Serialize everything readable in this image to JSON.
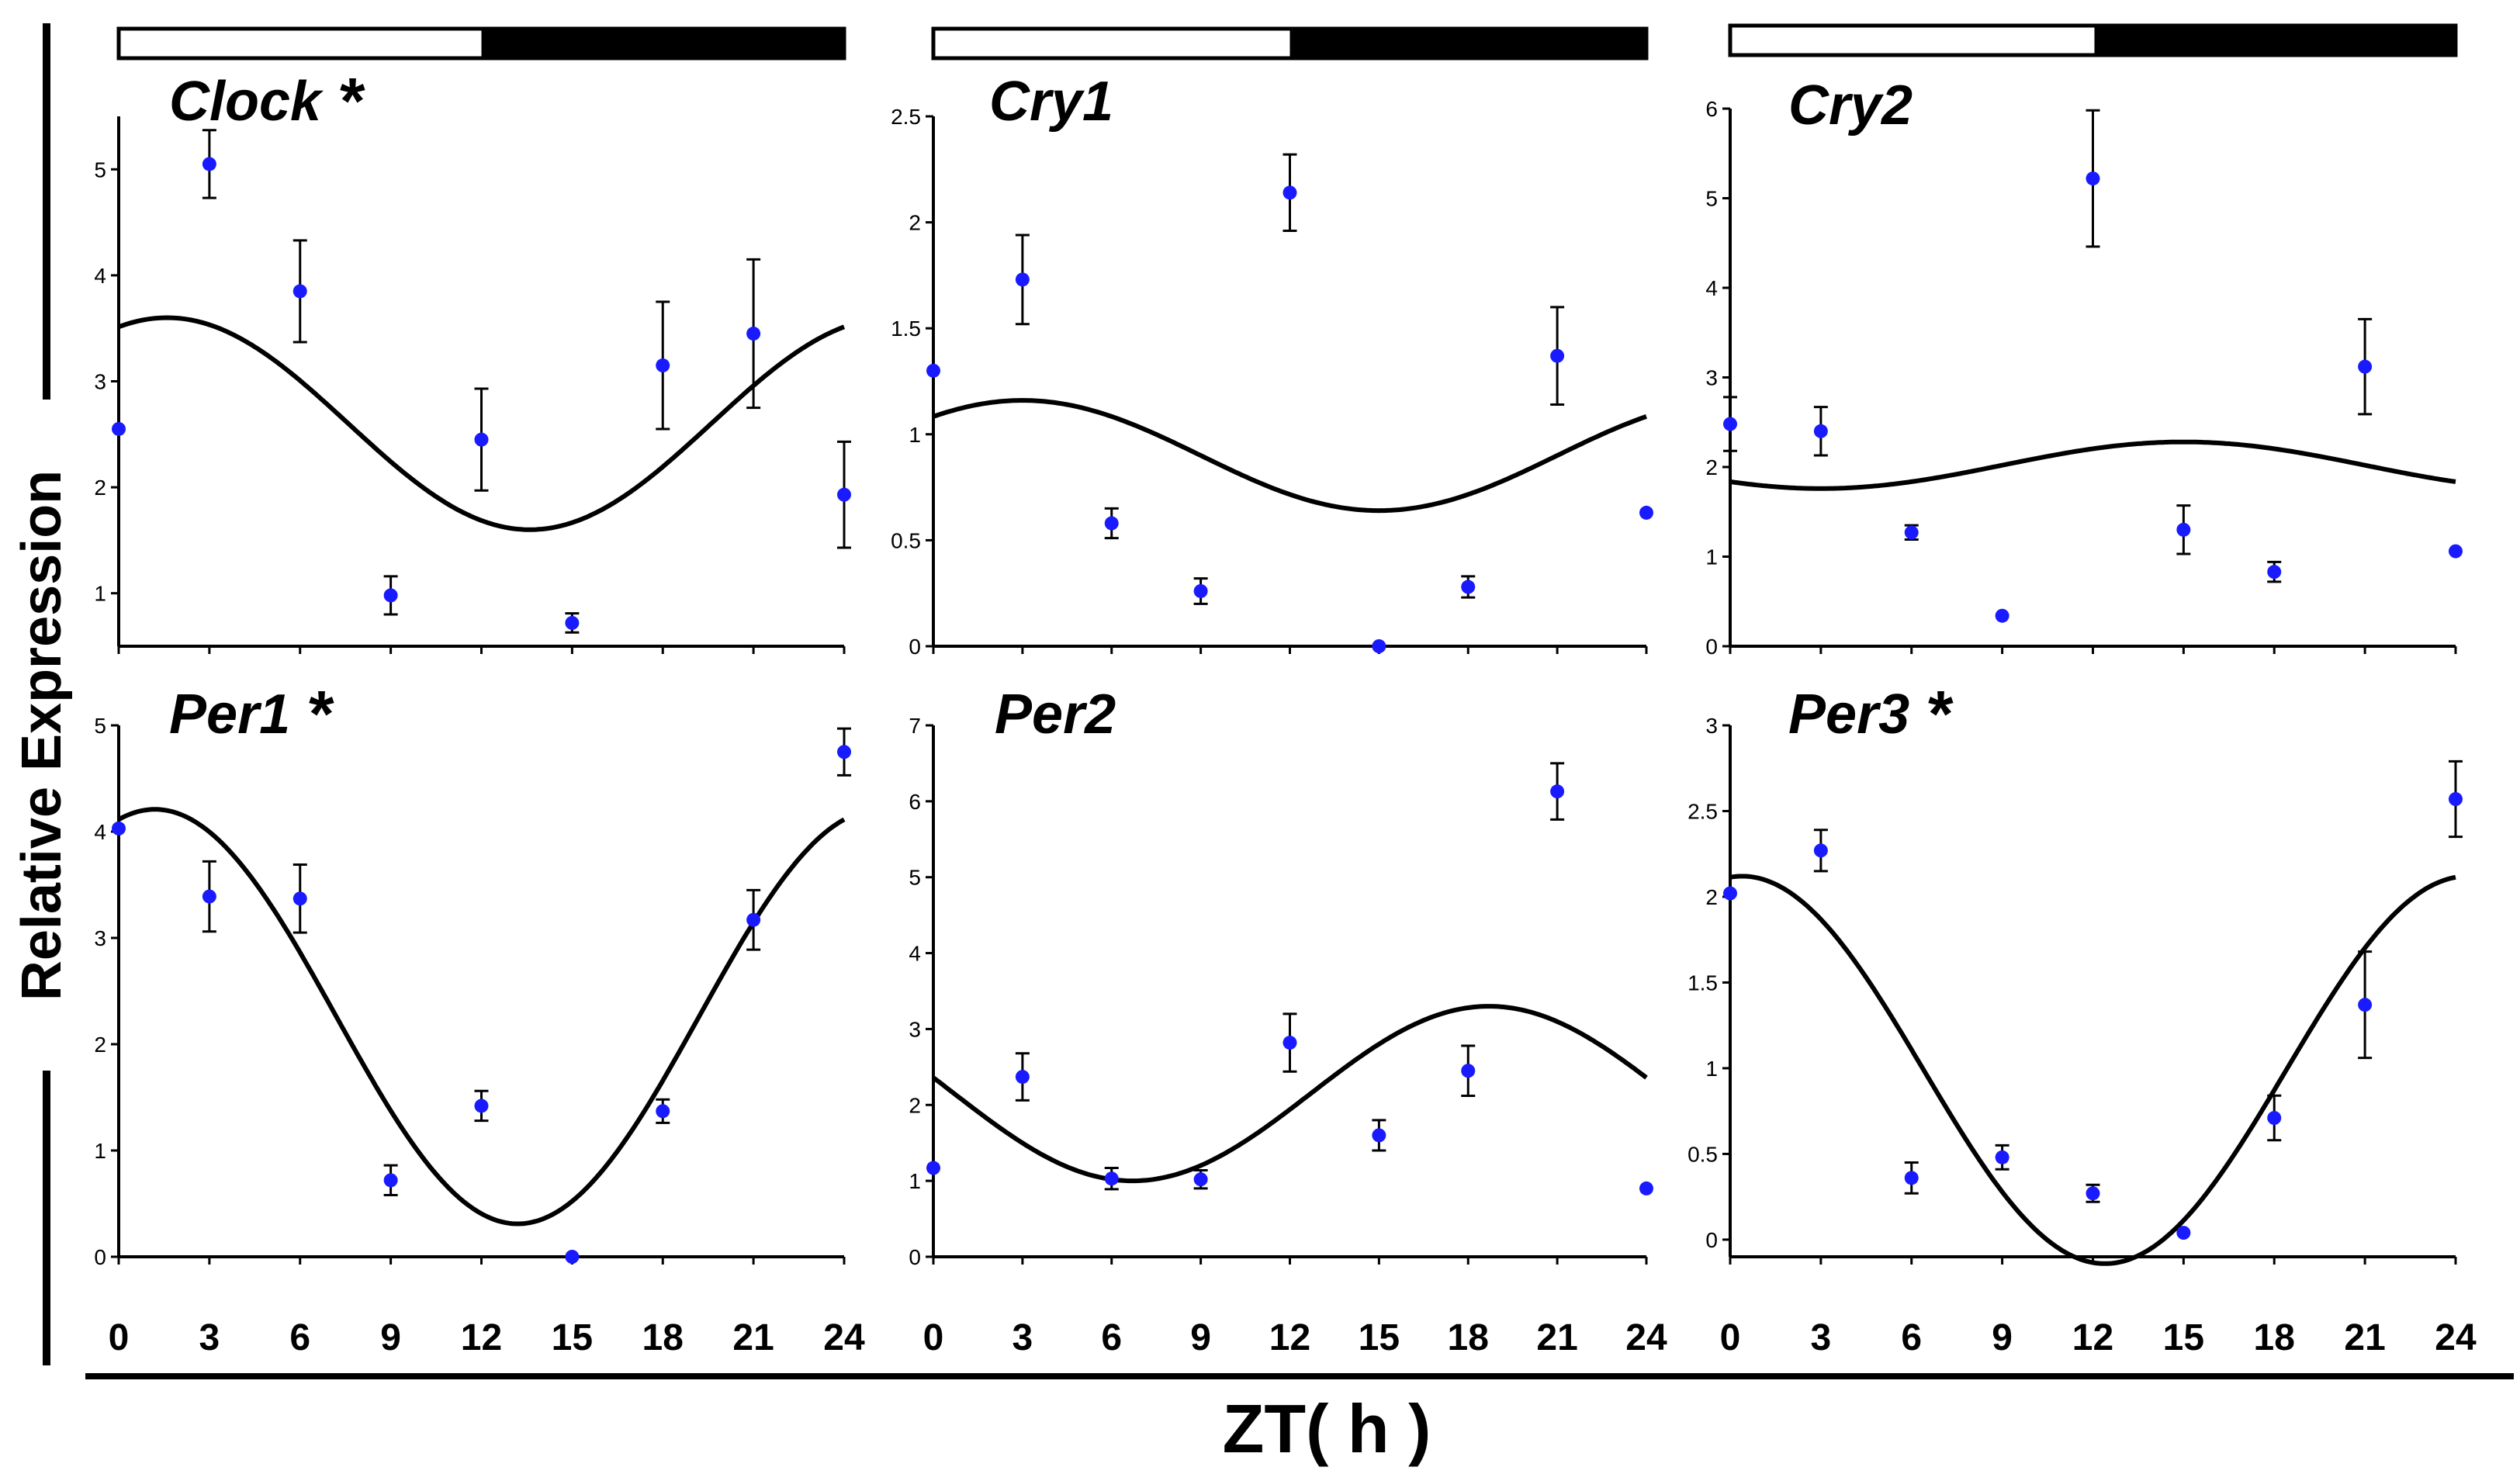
{
  "figure": {
    "ylabel": "Relative Expression",
    "xlabel": "ZT( h )",
    "x_ticks": [
      "0",
      "3",
      "6",
      "9",
      "12",
      "15",
      "18",
      "21",
      "24"
    ],
    "light_dark_bar": {
      "light_phase": [
        0,
        12
      ],
      "dark_phase": [
        12,
        24
      ],
      "light_color": "#ffffff",
      "dark_color": "#000000"
    },
    "point_color": "#1a1aff",
    "curve_color": "#000000"
  },
  "chart_data": [
    {
      "type": "scatter",
      "title": "Clock",
      "significant": true,
      "star": "*",
      "xlim": [
        0,
        24
      ],
      "ylim": [
        0.5,
        5.5
      ],
      "yticks": [
        1,
        2,
        3,
        4,
        5
      ],
      "ytick_labels": [
        "1",
        "2",
        "3",
        "4",
        "5"
      ],
      "x": [
        0,
        3,
        6,
        9,
        12,
        15,
        18,
        21,
        24
      ],
      "y": [
        2.55,
        5.05,
        3.85,
        0.98,
        2.45,
        0.72,
        3.15,
        3.45,
        1.93
      ],
      "err": [
        0.0,
        0.32,
        0.48,
        0.18,
        0.48,
        0.09,
        0.6,
        0.7,
        0.5
      ],
      "fit": {
        "mesor": 2.6,
        "amplitude": 1.0,
        "peak_zt": 1.6
      }
    },
    {
      "type": "scatter",
      "title": "Cry1",
      "significant": false,
      "star": "",
      "xlim": [
        0,
        24
      ],
      "ylim": [
        0,
        2.5
      ],
      "yticks": [
        0,
        0.5,
        1,
        1.5,
        2,
        2.5
      ],
      "ytick_labels": [
        "0",
        "0.5",
        "1",
        "1.5",
        "2",
        "2.5"
      ],
      "x": [
        0,
        3,
        6,
        9,
        12,
        15,
        18,
        21,
        24
      ],
      "y": [
        1.3,
        1.73,
        0.58,
        0.26,
        2.14,
        0.0,
        0.28,
        1.37,
        0.63
      ],
      "err": [
        0.0,
        0.21,
        0.07,
        0.06,
        0.18,
        0.0,
        0.05,
        0.23,
        0.0
      ],
      "fit": {
        "mesor": 0.9,
        "amplitude": 0.26,
        "peak_zt": 3.0
      }
    },
    {
      "type": "scatter",
      "title": "Cry2",
      "significant": false,
      "star": "",
      "xlim": [
        0,
        24
      ],
      "ylim": [
        0,
        6
      ],
      "yticks": [
        0,
        1,
        2,
        3,
        4,
        5,
        6
      ],
      "ytick_labels": [
        "0",
        "1",
        "2",
        "3",
        "4",
        "5",
        "6"
      ],
      "x": [
        0,
        3,
        6,
        9,
        12,
        15,
        18,
        21,
        24
      ],
      "y": [
        2.48,
        2.4,
        1.27,
        0.34,
        5.22,
        1.3,
        0.83,
        3.12,
        1.06
      ],
      "err": [
        0.3,
        0.27,
        0.08,
        0.0,
        0.76,
        0.27,
        0.11,
        0.53,
        0.0
      ],
      "fit": {
        "mesor": 2.02,
        "amplitude": 0.26,
        "peak_zt": 15.0
      }
    },
    {
      "type": "scatter",
      "title": "Per1",
      "significant": true,
      "star": "*",
      "xlim": [
        0,
        24
      ],
      "ylim": [
        0,
        5
      ],
      "yticks": [
        0,
        1,
        2,
        3,
        4,
        5
      ],
      "ytick_labels": [
        "0",
        "1",
        "2",
        "3",
        "4",
        "5"
      ],
      "x": [
        0,
        3,
        6,
        9,
        12,
        15,
        18,
        21,
        24
      ],
      "y": [
        4.03,
        3.39,
        3.37,
        0.72,
        1.42,
        0.0,
        1.37,
        3.17,
        4.75
      ],
      "err": [
        0.0,
        0.33,
        0.32,
        0.14,
        0.14,
        0.0,
        0.11,
        0.28,
        0.22
      ],
      "fit": {
        "mesor": 2.26,
        "amplitude": 1.95,
        "peak_zt": 1.2
      }
    },
    {
      "type": "scatter",
      "title": "Per2",
      "significant": false,
      "star": "",
      "xlim": [
        0,
        24
      ],
      "ylim": [
        0,
        7
      ],
      "yticks": [
        0,
        1,
        2,
        3,
        4,
        5,
        6,
        7
      ],
      "ytick_labels": [
        "0",
        "1",
        "2",
        "3",
        "4",
        "5",
        "6",
        "7"
      ],
      "x": [
        0,
        3,
        6,
        9,
        12,
        15,
        18,
        21,
        24
      ],
      "y": [
        1.17,
        2.37,
        1.03,
        1.02,
        2.82,
        1.6,
        2.45,
        6.13,
        0.9
      ],
      "err": [
        0.0,
        0.31,
        0.14,
        0.12,
        0.38,
        0.2,
        0.33,
        0.37,
        0.0
      ],
      "fit": {
        "mesor": 2.15,
        "amplitude": 1.15,
        "peak_zt": 18.7
      }
    },
    {
      "type": "scatter",
      "title": "Per3",
      "significant": true,
      "star": "*",
      "xlim": [
        0,
        24
      ],
      "ylim": [
        -0.1,
        3
      ],
      "yticks": [
        0,
        0.5,
        1,
        1.5,
        2,
        2.5,
        3
      ],
      "ytick_labels": [
        "0",
        "0.5",
        "1",
        "1.5",
        "2",
        "2.5",
        "3"
      ],
      "x": [
        0,
        3,
        6,
        9,
        12,
        15,
        18,
        21,
        24
      ],
      "y": [
        2.02,
        2.27,
        0.36,
        0.48,
        0.27,
        0.04,
        0.71,
        1.37,
        2.57
      ],
      "err": [
        0.0,
        0.12,
        0.09,
        0.07,
        0.05,
        0.0,
        0.13,
        0.31,
        0.22
      ],
      "fit": {
        "mesor": 0.99,
        "amplitude": 1.13,
        "peak_zt": 0.4
      }
    }
  ]
}
